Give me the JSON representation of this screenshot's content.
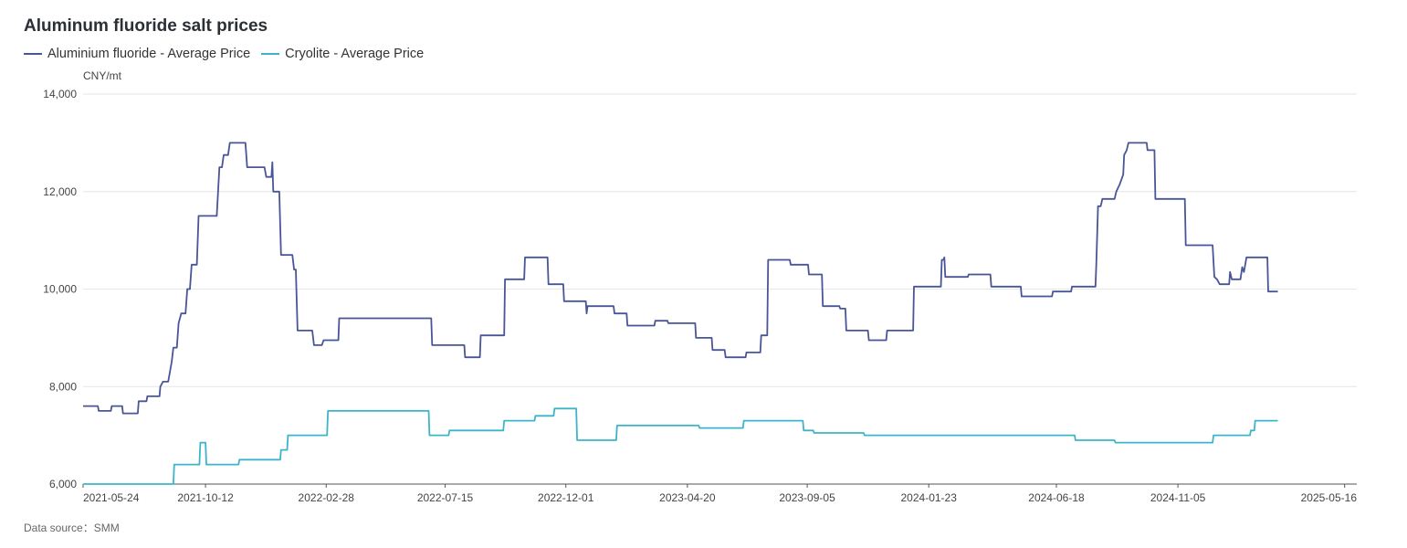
{
  "chart_data": {
    "type": "line",
    "title": "Aluminum fluoride salt prices",
    "ylabel": "CNY/mt",
    "ylim": [
      6000,
      14000
    ],
    "y_ticks": [
      "6,000",
      "8,000",
      "10,000",
      "12,000",
      "14,000"
    ],
    "y_tick_values": [
      6000,
      8000,
      10000,
      12000,
      14000
    ],
    "x_tick_labels": [
      "2021-05-24",
      "2021-10-12",
      "2022-02-28",
      "2022-07-15",
      "2022-12-01",
      "2023-04-20",
      "2023-09-05",
      "2024-01-23",
      "2024-06-18",
      "2024-11-05",
      "2025-05-16"
    ],
    "x_range": [
      "2021-05-24",
      "2025-05-30"
    ],
    "grid": true,
    "legend_position": "top-left",
    "series": [
      {
        "name": "Aluminium fluoride - Average Price",
        "color": "#4a5597",
        "points": [
          [
            "2021-05-24",
            7600
          ],
          [
            "2021-06-10",
            7600
          ],
          [
            "2021-06-11",
            7500
          ],
          [
            "2021-06-25",
            7500
          ],
          [
            "2021-06-26",
            7600
          ],
          [
            "2021-07-08",
            7600
          ],
          [
            "2021-07-09",
            7450
          ],
          [
            "2021-07-26",
            7450
          ],
          [
            "2021-07-27",
            7700
          ],
          [
            "2021-08-05",
            7700
          ],
          [
            "2021-08-06",
            7800
          ],
          [
            "2021-08-20",
            7800
          ],
          [
            "2021-08-21",
            8000
          ],
          [
            "2021-08-24",
            8100
          ],
          [
            "2021-08-30",
            8100
          ],
          [
            "2021-09-01",
            8300
          ],
          [
            "2021-09-03",
            8500
          ],
          [
            "2021-09-05",
            8800
          ],
          [
            "2021-09-09",
            8800
          ],
          [
            "2021-09-11",
            9300
          ],
          [
            "2021-09-14",
            9500
          ],
          [
            "2021-09-19",
            9500
          ],
          [
            "2021-09-21",
            10000
          ],
          [
            "2021-09-24",
            10000
          ],
          [
            "2021-09-26",
            10500
          ],
          [
            "2021-10-02",
            10500
          ],
          [
            "2021-10-04",
            11500
          ],
          [
            "2021-10-25",
            11500
          ],
          [
            "2021-10-28",
            12500
          ],
          [
            "2021-10-31",
            12500
          ],
          [
            "2021-11-02",
            12750
          ],
          [
            "2021-11-07",
            12750
          ],
          [
            "2021-11-09",
            13000
          ],
          [
            "2021-11-27",
            13000
          ],
          [
            "2021-11-29",
            12500
          ],
          [
            "2021-12-19",
            12500
          ],
          [
            "2021-12-21",
            12300
          ],
          [
            "2021-12-27",
            12300
          ],
          [
            "2021-12-28",
            12600
          ],
          [
            "2021-12-29",
            12000
          ],
          [
            "2022-01-05",
            12000
          ],
          [
            "2022-01-07",
            10700
          ],
          [
            "2022-01-20",
            10700
          ],
          [
            "2022-01-22",
            10400
          ],
          [
            "2022-01-24",
            10400
          ],
          [
            "2022-01-26",
            9150
          ],
          [
            "2022-02-12",
            9150
          ],
          [
            "2022-02-14",
            8850
          ],
          [
            "2022-02-23",
            8850
          ],
          [
            "2022-02-25",
            8950
          ],
          [
            "2022-03-14",
            8950
          ],
          [
            "2022-03-15",
            9400
          ],
          [
            "2022-06-29",
            9400
          ],
          [
            "2022-06-30",
            8850
          ],
          [
            "2022-08-06",
            8850
          ],
          [
            "2022-08-07",
            8600
          ],
          [
            "2022-08-24",
            8600
          ],
          [
            "2022-08-25",
            9050
          ],
          [
            "2022-09-21",
            9050
          ],
          [
            "2022-09-22",
            10200
          ],
          [
            "2022-10-14",
            10200
          ],
          [
            "2022-10-15",
            10650
          ],
          [
            "2022-11-10",
            10650
          ],
          [
            "2022-11-11",
            10100
          ],
          [
            "2022-11-28",
            10100
          ],
          [
            "2022-11-29",
            9750
          ],
          [
            "2022-12-24",
            9750
          ],
          [
            "2022-12-25",
            9500
          ],
          [
            "2022-12-26",
            9650
          ],
          [
            "2023-01-25",
            9650
          ],
          [
            "2023-01-26",
            9500
          ],
          [
            "2023-02-09",
            9500
          ],
          [
            "2023-02-10",
            9250
          ],
          [
            "2023-03-13",
            9250
          ],
          [
            "2023-03-14",
            9350
          ],
          [
            "2023-03-28",
            9350
          ],
          [
            "2023-03-29",
            9300
          ],
          [
            "2023-04-29",
            9300
          ],
          [
            "2023-04-30",
            9000
          ],
          [
            "2023-05-18",
            9000
          ],
          [
            "2023-05-19",
            8750
          ],
          [
            "2023-06-02",
            8750
          ],
          [
            "2023-06-03",
            8600
          ],
          [
            "2023-06-26",
            8600
          ],
          [
            "2023-06-27",
            8700
          ],
          [
            "2023-07-13",
            8700
          ],
          [
            "2023-07-14",
            9050
          ],
          [
            "2023-07-21",
            9050
          ],
          [
            "2023-07-22",
            10600
          ],
          [
            "2023-08-16",
            10600
          ],
          [
            "2023-08-17",
            10500
          ],
          [
            "2023-09-06",
            10500
          ],
          [
            "2023-09-07",
            10300
          ],
          [
            "2023-09-22",
            10300
          ],
          [
            "2023-09-23",
            9650
          ],
          [
            "2023-10-12",
            9650
          ],
          [
            "2023-10-13",
            9600
          ],
          [
            "2023-10-19",
            9600
          ],
          [
            "2023-10-20",
            9150
          ],
          [
            "2023-11-14",
            9150
          ],
          [
            "2023-11-15",
            8950
          ],
          [
            "2023-12-05",
            8950
          ],
          [
            "2023-12-06",
            9150
          ],
          [
            "2024-01-05",
            9150
          ],
          [
            "2024-01-06",
            10050
          ],
          [
            "2024-02-06",
            10050
          ],
          [
            "2024-02-07",
            10600
          ],
          [
            "2024-02-09",
            10600
          ],
          [
            "2024-02-10",
            10650
          ],
          [
            "2024-02-11",
            10250
          ],
          [
            "2024-03-08",
            10250
          ],
          [
            "2024-03-09",
            10300
          ],
          [
            "2024-04-03",
            10300
          ],
          [
            "2024-04-04",
            10050
          ],
          [
            "2024-05-08",
            10050
          ],
          [
            "2024-05-09",
            9850
          ],
          [
            "2024-06-13",
            9850
          ],
          [
            "2024-06-14",
            9950
          ],
          [
            "2024-07-05",
            9950
          ],
          [
            "2024-07-06",
            10050
          ],
          [
            "2024-08-02",
            10050
          ],
          [
            "2024-08-03",
            10500
          ],
          [
            "2024-08-05",
            11700
          ],
          [
            "2024-08-08",
            11700
          ],
          [
            "2024-08-10",
            11850
          ],
          [
            "2024-08-24",
            11850
          ],
          [
            "2024-08-26",
            12000
          ],
          [
            "2024-08-30",
            12150
          ],
          [
            "2024-09-03",
            12350
          ],
          [
            "2024-09-04",
            12750
          ],
          [
            "2024-09-07",
            12850
          ],
          [
            "2024-09-09",
            13000
          ],
          [
            "2024-09-30",
            13000
          ],
          [
            "2024-10-01",
            12850
          ],
          [
            "2024-10-09",
            12850
          ],
          [
            "2024-10-10",
            11850
          ],
          [
            "2024-11-13",
            11850
          ],
          [
            "2024-11-14",
            10900
          ],
          [
            "2024-12-15",
            10900
          ],
          [
            "2024-12-17",
            10250
          ],
          [
            "2024-12-20",
            10200
          ],
          [
            "2024-12-23",
            10100
          ],
          [
            "2025-01-03",
            10100
          ],
          [
            "2025-01-04",
            10350
          ],
          [
            "2025-01-06",
            10200
          ],
          [
            "2025-01-16",
            10200
          ],
          [
            "2025-01-18",
            10450
          ],
          [
            "2025-01-20",
            10350
          ],
          [
            "2025-01-23",
            10650
          ],
          [
            "2025-02-16",
            10650
          ],
          [
            "2025-02-17",
            9950
          ],
          [
            "2025-02-28",
            9950
          ]
        ]
      },
      {
        "name": "Cryolite - Average Price",
        "color": "#3db5c8",
        "points": [
          [
            "2021-05-24",
            6000
          ],
          [
            "2021-09-05",
            6000
          ],
          [
            "2021-09-06",
            6400
          ],
          [
            "2021-10-05",
            6400
          ],
          [
            "2021-10-06",
            6850
          ],
          [
            "2021-10-12",
            6850
          ],
          [
            "2021-10-13",
            6400
          ],
          [
            "2021-11-19",
            6400
          ],
          [
            "2021-11-20",
            6500
          ],
          [
            "2022-01-06",
            6500
          ],
          [
            "2022-01-07",
            6700
          ],
          [
            "2022-01-14",
            6700
          ],
          [
            "2022-01-15",
            7000
          ],
          [
            "2022-03-01",
            7000
          ],
          [
            "2022-03-02",
            7500
          ],
          [
            "2022-06-26",
            7500
          ],
          [
            "2022-06-27",
            7000
          ],
          [
            "2022-07-19",
            7000
          ],
          [
            "2022-07-20",
            7100
          ],
          [
            "2022-09-20",
            7100
          ],
          [
            "2022-09-21",
            7300
          ],
          [
            "2022-10-26",
            7300
          ],
          [
            "2022-10-27",
            7400
          ],
          [
            "2022-11-17",
            7400
          ],
          [
            "2022-11-18",
            7550
          ],
          [
            "2022-12-13",
            7550
          ],
          [
            "2022-12-14",
            6900
          ],
          [
            "2023-01-28",
            6900
          ],
          [
            "2023-01-29",
            7200
          ],
          [
            "2023-05-03",
            7200
          ],
          [
            "2023-05-04",
            7150
          ],
          [
            "2023-06-23",
            7150
          ],
          [
            "2023-06-24",
            7300
          ],
          [
            "2023-08-31",
            7300
          ],
          [
            "2023-09-01",
            7100
          ],
          [
            "2023-09-12",
            7100
          ],
          [
            "2023-09-13",
            7050
          ],
          [
            "2023-11-09",
            7050
          ],
          [
            "2023-11-10",
            7000
          ],
          [
            "2024-07-09",
            7000
          ],
          [
            "2024-07-10",
            6900
          ],
          [
            "2024-08-24",
            6900
          ],
          [
            "2024-08-25",
            6850
          ],
          [
            "2024-12-15",
            6850
          ],
          [
            "2024-12-16",
            7000
          ],
          [
            "2025-01-27",
            7000
          ],
          [
            "2025-01-28",
            7100
          ],
          [
            "2025-02-01",
            7100
          ],
          [
            "2025-02-02",
            7300
          ],
          [
            "2025-02-28",
            7300
          ]
        ]
      }
    ]
  },
  "data_source": "Data source：SMM"
}
